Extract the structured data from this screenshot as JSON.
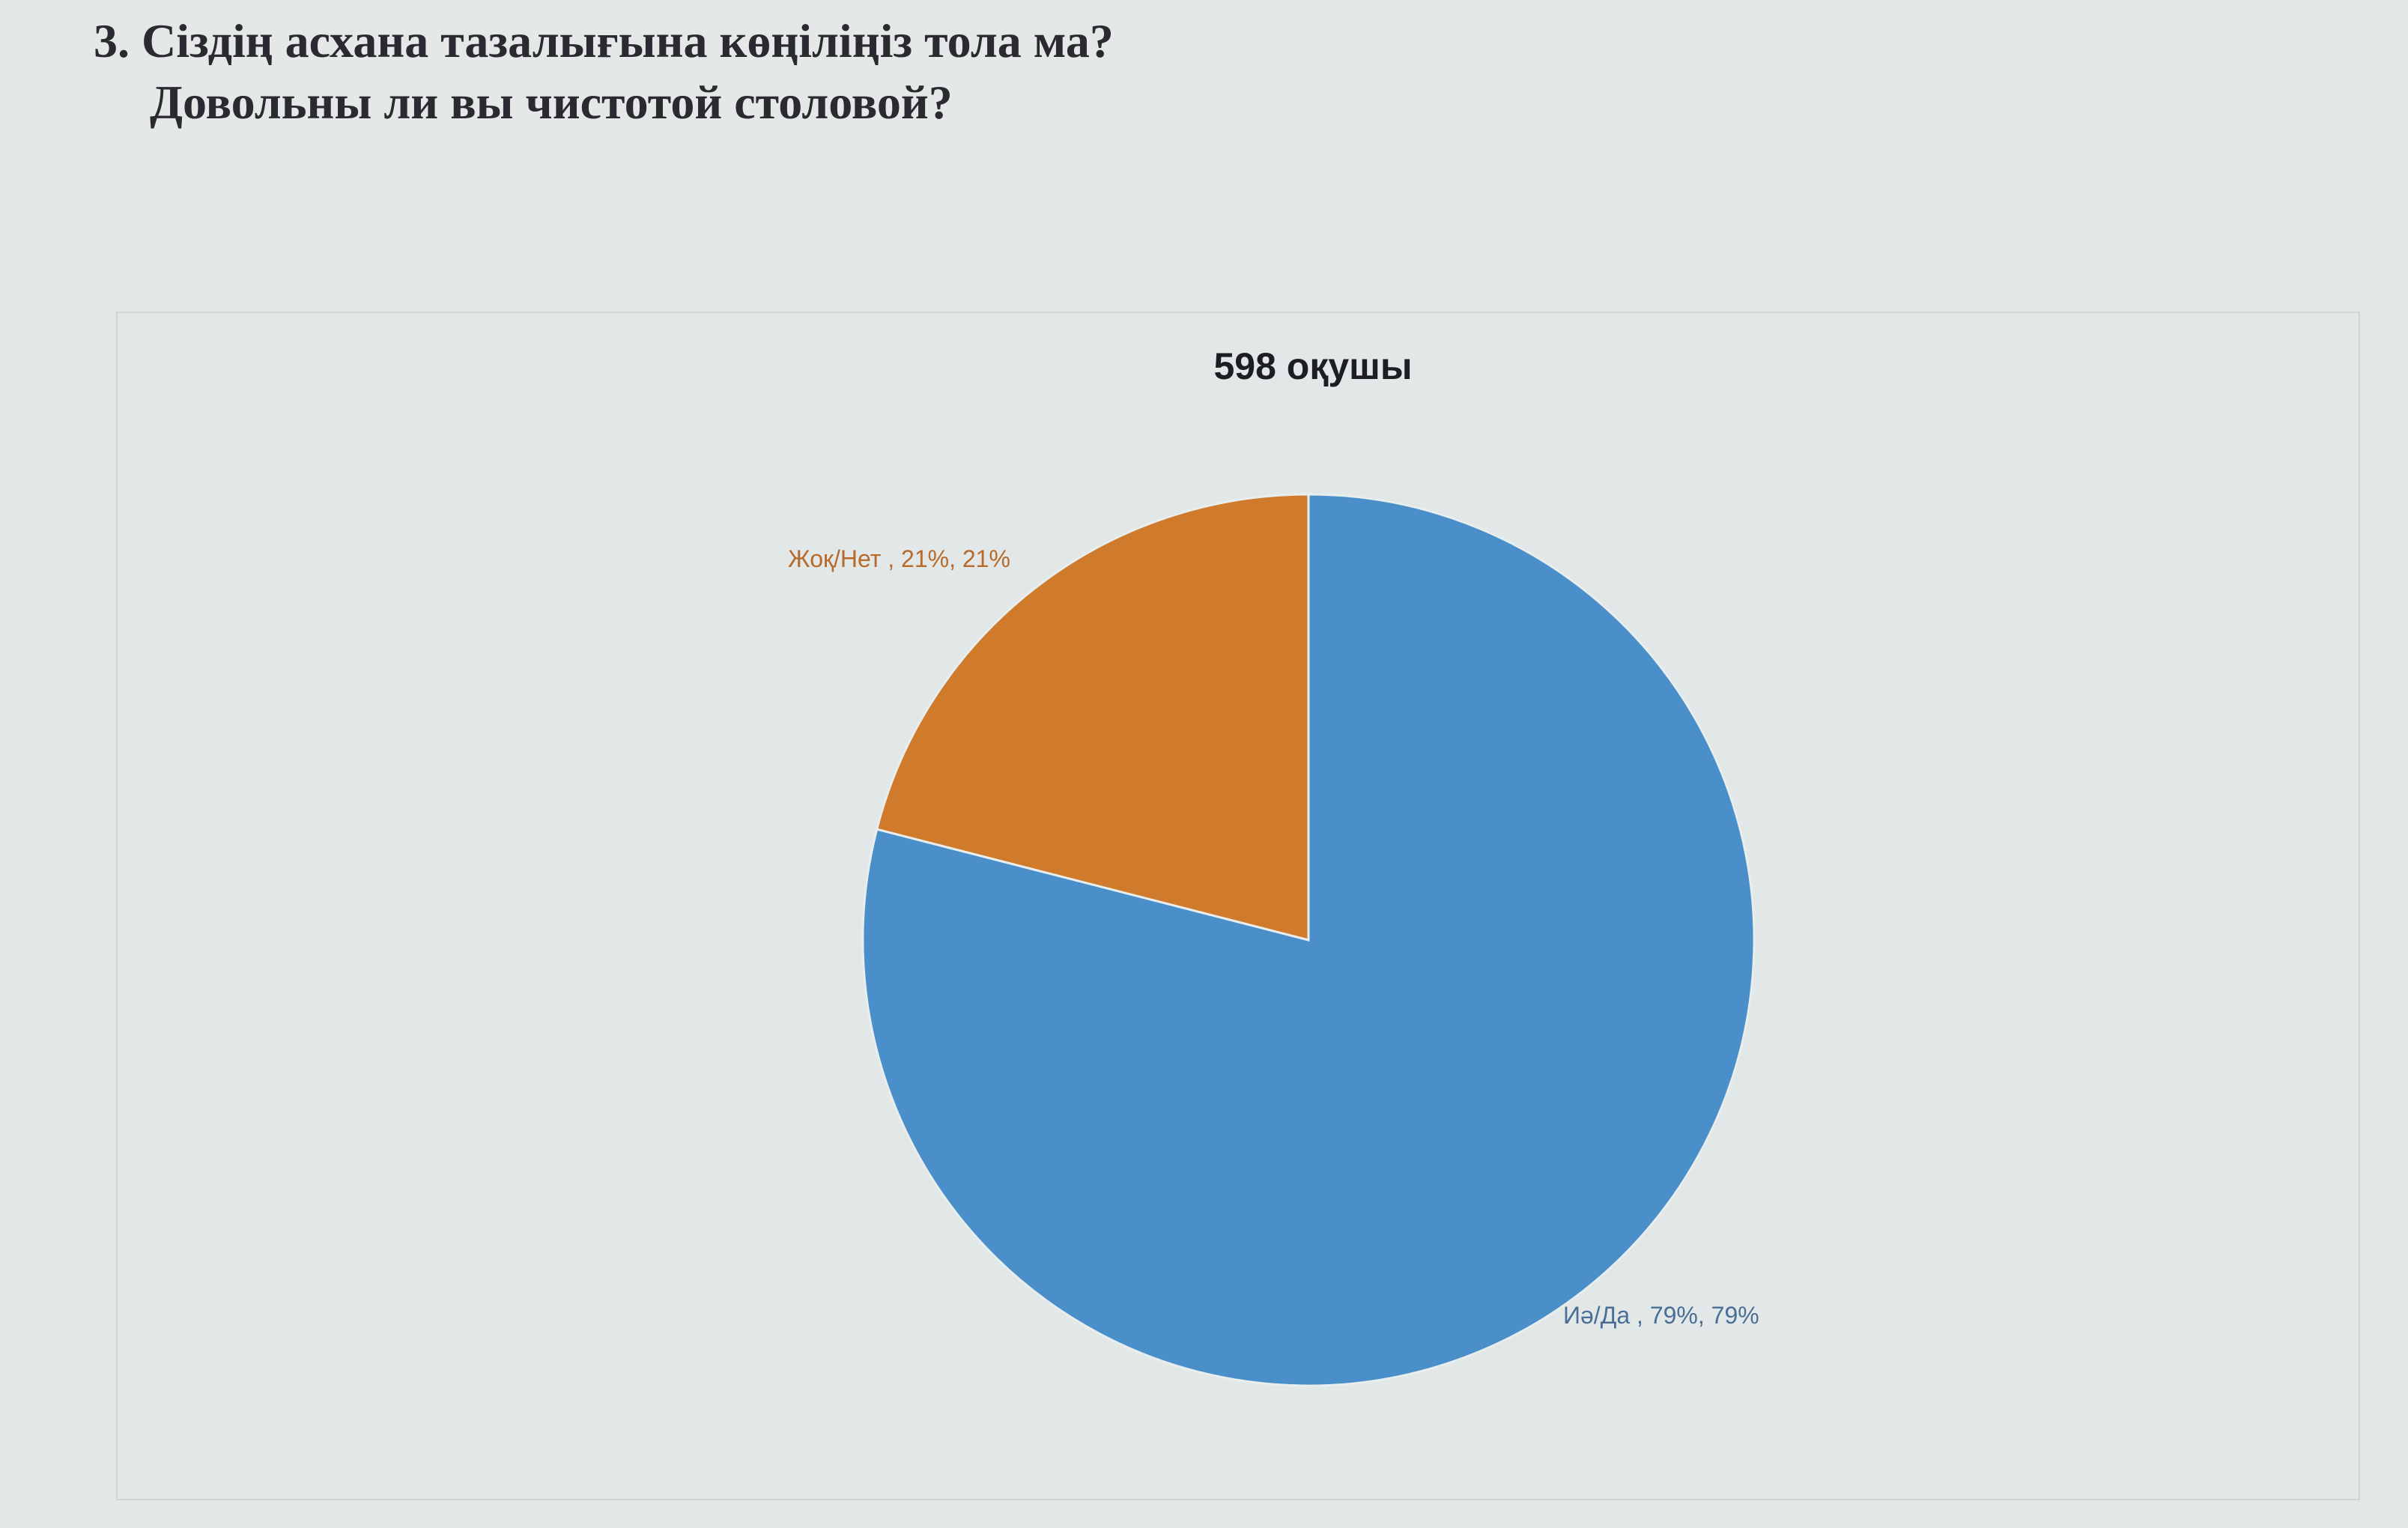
{
  "question": {
    "line1": "3. Сіздің асхана тазалығына көңіліңіз тола ма?",
    "line2": "Довольны ли вы чистотой столовой?"
  },
  "chart_data": {
    "type": "pie",
    "title": "598 оқушы",
    "slices": [
      {
        "label": "Иә/Да",
        "value": 79,
        "data_label": "Иә/Да , 79%, 79%",
        "color": "#4a8fca"
      },
      {
        "label": "Жоқ/Нет",
        "value": 21,
        "data_label": "Жоқ/Нет , 21%, 21%",
        "color": "#d07a2c"
      }
    ],
    "start_angle": "12 o'clock",
    "legend": "none"
  }
}
